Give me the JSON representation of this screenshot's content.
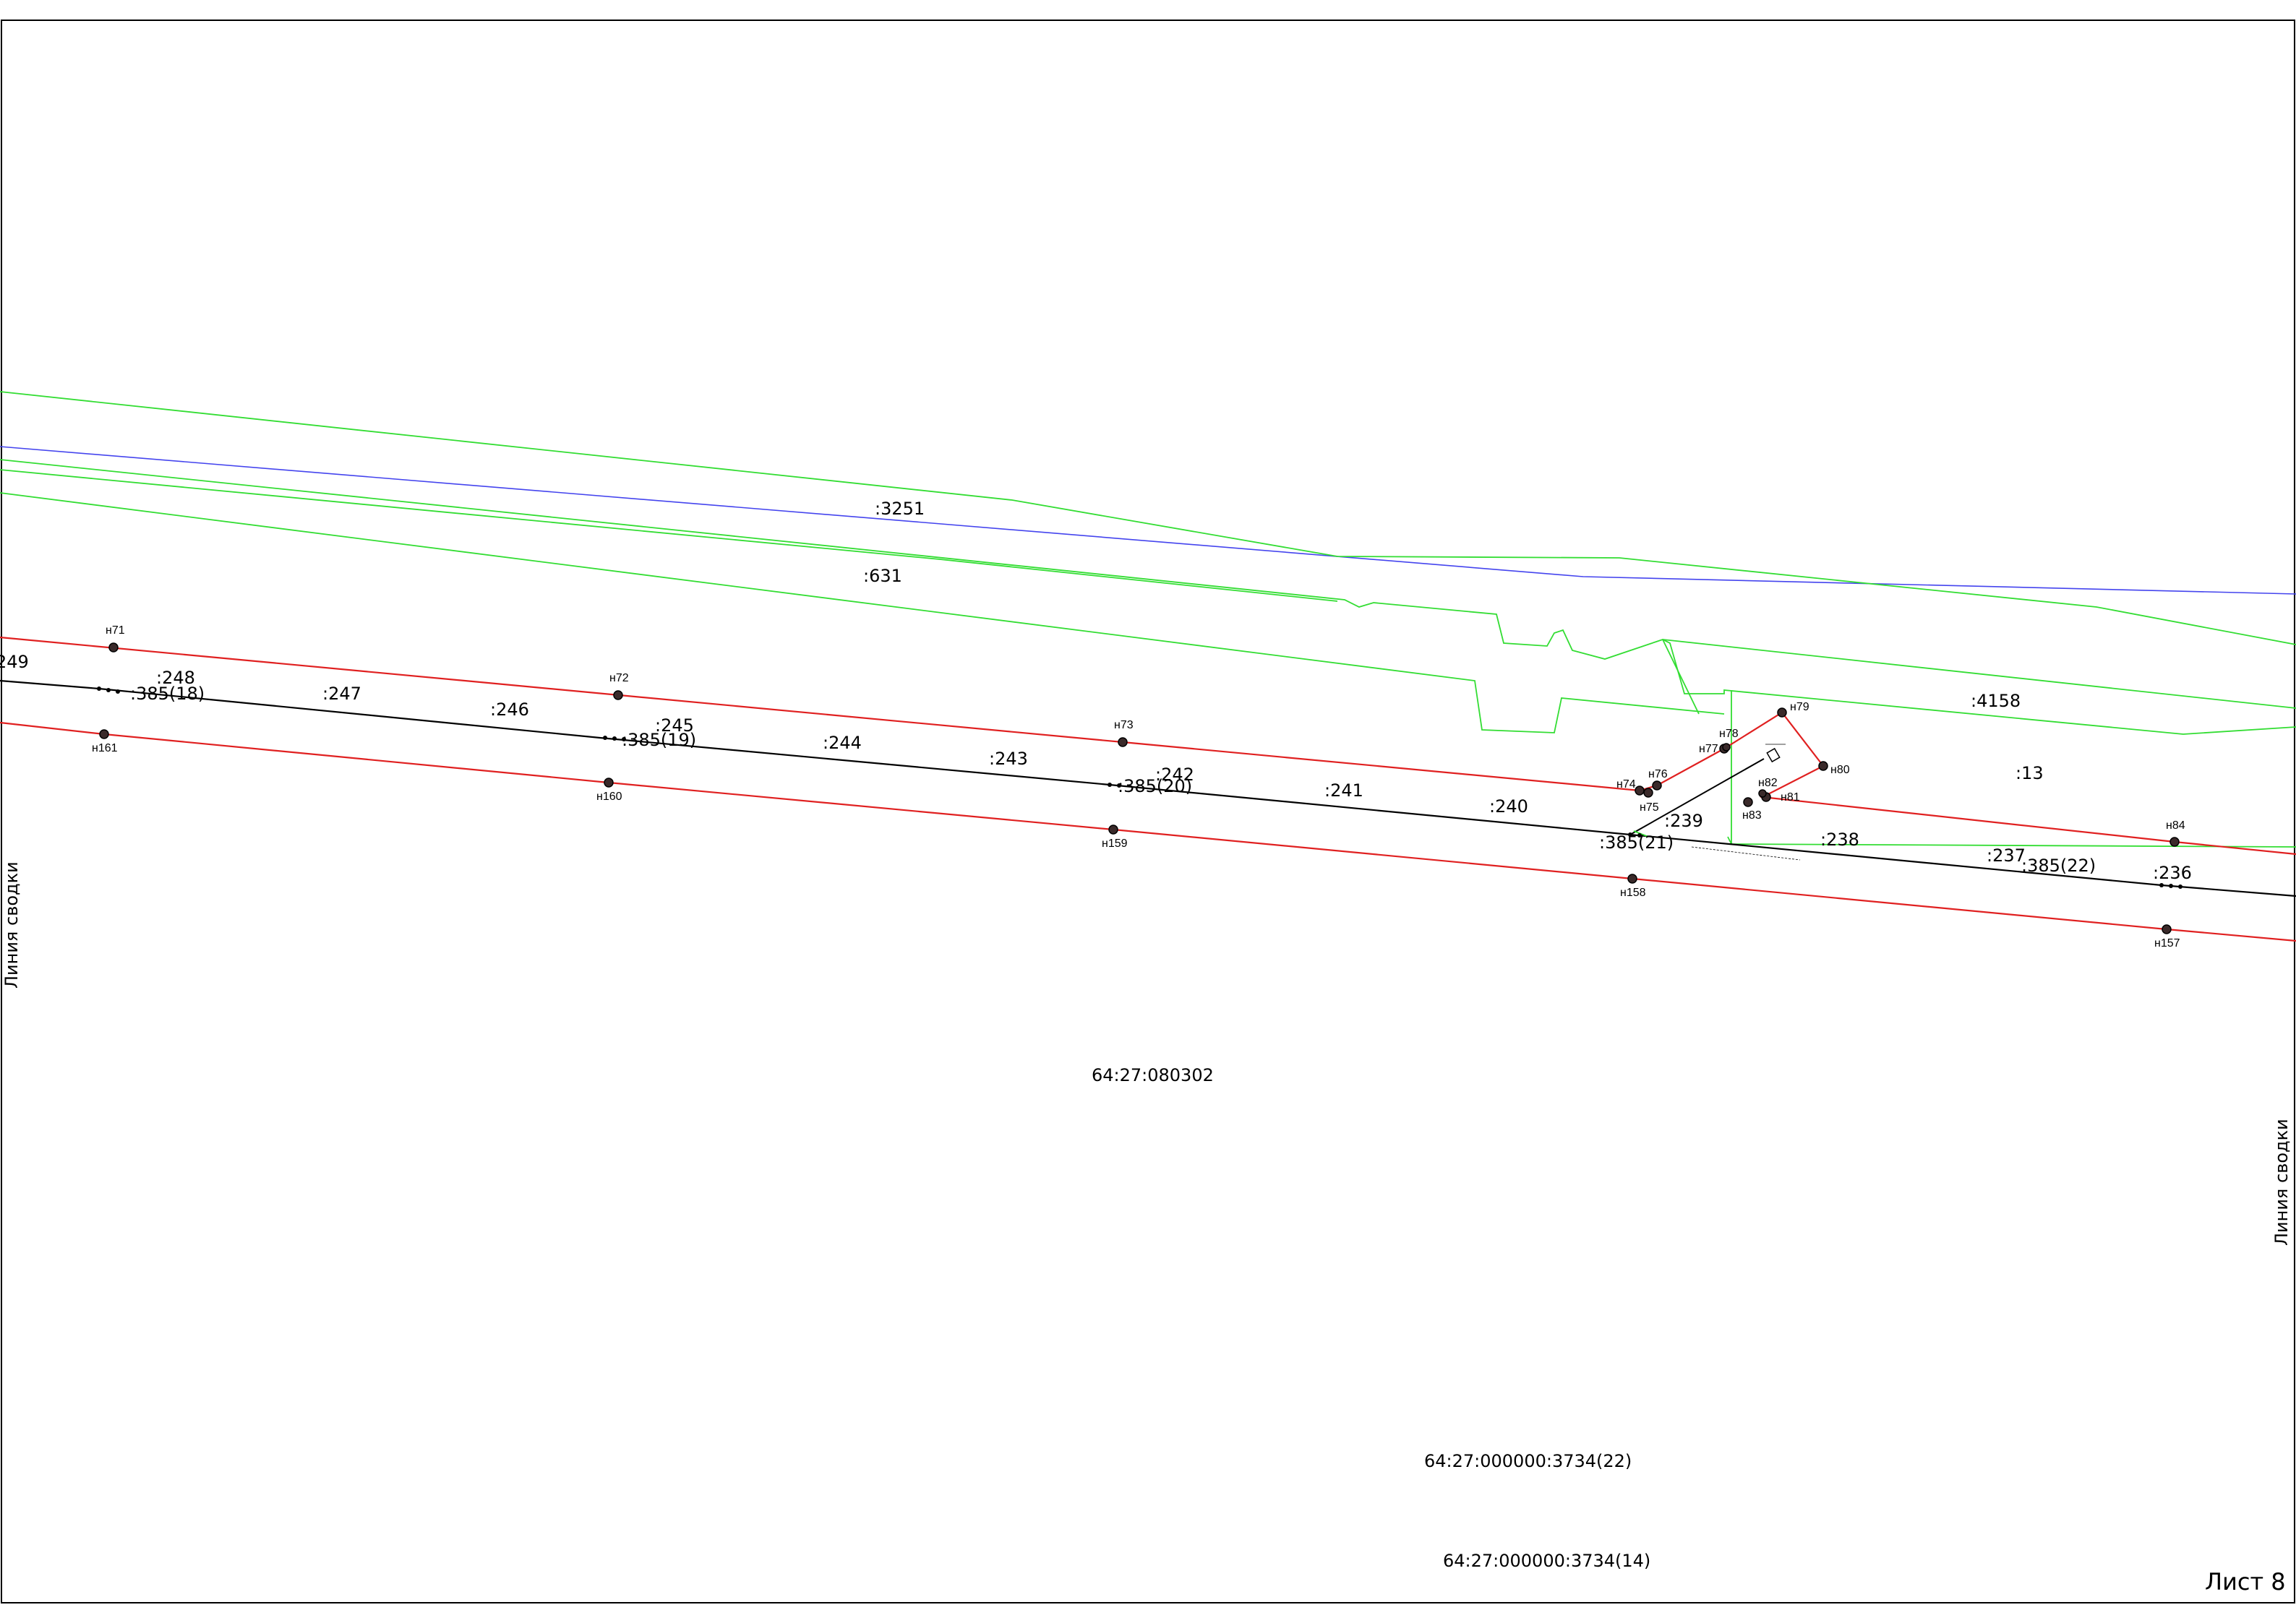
{
  "map": {
    "sheet_label": "Лист 8",
    "summary_line_label": "Линия сводки",
    "block_number": "64:27:080302",
    "parcels_bottom": [
      "64:27:000000:3734(22)",
      "64:27:000000:3734(14)"
    ],
    "linear_object_parts": [
      "385(18)",
      "385(19)",
      "385(20)",
      "385(21)",
      "385(22)"
    ],
    "parcel_labels": [
      "3251",
      "631",
      "4158",
      "13",
      "249",
      "248",
      "247",
      "246",
      "245",
      "244",
      "243",
      "242",
      "241",
      "240",
      "239",
      "238",
      "237",
      "236"
    ],
    "boundary_points_top": [
      "н71",
      "н72",
      "н73",
      "н74",
      "н75",
      "н76",
      "н77",
      "н78",
      "н79",
      "н80",
      "н81",
      "н82",
      "н83",
      "н84"
    ],
    "boundary_points_bottom": [
      "н161",
      "н160",
      "н159",
      "н158",
      "н157"
    ],
    "legend_colors": {
      "new_boundary": "#e02020",
      "existing_parcels": "#33dd33",
      "linear_object": "#000000",
      "zone_line": "#4444ee"
    }
  }
}
